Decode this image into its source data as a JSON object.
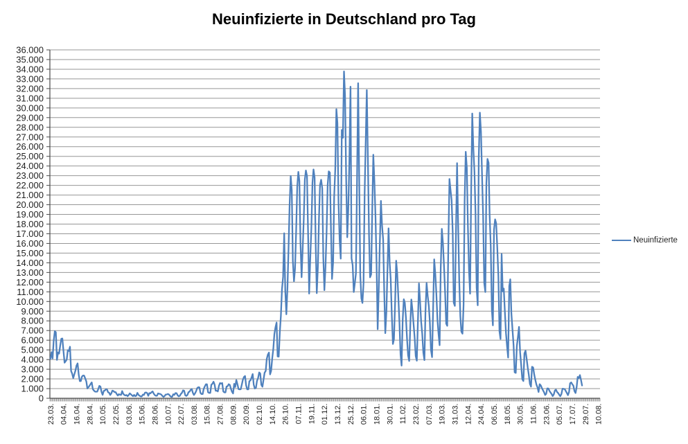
{
  "title": "Neuinfizierte in Deutschland pro Tag",
  "legend": {
    "series_label": "Neuinfizierte",
    "position": "right"
  },
  "colors": {
    "series": "#4F81BD",
    "gridline": "#969696",
    "axis": "#4a4a4a",
    "tick": "#808080",
    "label_text": "#1f1f1f",
    "title_text": "#000000",
    "background": "#FFFFFF"
  },
  "chart_data": {
    "type": "line",
    "title": "Neuinfizierte in Deutschland pro Tag",
    "xlabel": "",
    "ylabel": "",
    "grid": true,
    "legend_position": "right",
    "y_min": 0,
    "y_max": 36000,
    "y_step": 1000,
    "y_tick_labels": [
      "0",
      "1.000",
      "2.000",
      "3.000",
      "4.000",
      "5.000",
      "6.000",
      "7.000",
      "8.000",
      "9.000",
      "10.000",
      "11.000",
      "12.000",
      "13.000",
      "14.000",
      "15.000",
      "16.000",
      "17.000",
      "18.000",
      "19.000",
      "20.000",
      "21.000",
      "22.000",
      "23.000",
      "24.000",
      "25.000",
      "26.000",
      "27.000",
      "28.000",
      "29.000",
      "30.000",
      "31.000",
      "32.000",
      "33.000",
      "34.000",
      "35.000",
      "36.000"
    ],
    "x_tick_labels": [
      "23.03.",
      "04.04.",
      "16.04.",
      "28.04.",
      "10.05.",
      "22.05.",
      "03.06.",
      "15.06.",
      "28.06.",
      "10.07.",
      "22.07.",
      "03.08.",
      "15.08.",
      "27.08.",
      "08.09.",
      "20.09.",
      "02.10.",
      "14.10.",
      "26.10.",
      "07.11.",
      "19.11.",
      "01.12.",
      "13.12.",
      "25.12.",
      "06.01.",
      "18.01.",
      "30.01.",
      "11.02.",
      "23.02.",
      "07.03.",
      "19.03.",
      "31.03.",
      "12.04.",
      "24.04.",
      "06.05.",
      "18.05.",
      "30.05.",
      "11.06.",
      "23.06.",
      "05.07.",
      "17.07.",
      "29.07.",
      "10.08."
    ],
    "x_tick_every": 12,
    "category_count": 506,
    "frequency": "daily",
    "series": [
      {
        "name": "Neuinfizierte",
        "first_category_label": "23.03.",
        "values": [
          4062,
          4764,
          4118,
          5940,
          6933,
          6824,
          3965,
          4751,
          4615,
          5453,
          6156,
          6174,
          4885,
          3677,
          3834,
          4003,
          4974,
          4885,
          5323,
          2821,
          2537,
          2082,
          2486,
          2866,
          3380,
          3609,
          2458,
          1775,
          1785,
          2237,
          2352,
          2337,
          2055,
          1737,
          1018,
          1144,
          1304,
          1478,
          1639,
          945,
          793,
          697,
          679,
          685,
          947,
          1284,
          1209,
          667,
          357,
          757,
          798,
          933,
          913,
          620,
          583,
          342,
          513,
          797,
          745,
          639,
          638,
          431,
          289,
          432,
          362,
          353,
          741,
          460,
          345,
          286,
          333,
          213,
          342,
          507,
          407,
          301,
          214,
          350,
          214,
          267,
          555,
          348,
          258,
          192,
          192,
          378,
          345,
          580,
          601,
          537,
          256,
          537,
          503,
          630,
          712,
          477,
          334,
          256,
          262,
          498,
          466,
          446,
          382,
          239,
          151,
          219,
          390,
          397,
          442,
          395,
          250,
          159,
          159,
          412,
          351,
          534,
          529,
          305,
          202,
          249,
          454,
          569,
          815,
          781,
          305,
          240,
          340,
          633,
          684,
          870,
          955,
          575,
          340,
          509,
          741,
          1045,
          1147,
          1122,
          555,
          436,
          436,
          966,
          1226,
          1445,
          1449,
          625,
          561,
          561,
          1390,
          1510,
          1707,
          1427,
          782,
          785,
          711,
          1278,
          1576,
          1507,
          1571,
          711,
          610,
          610,
          1218,
          1256,
          1453,
          1378,
          988,
          679,
          499,
          1499,
          1176,
          1892,
          1449,
          948,
          920,
          927,
          1407,
          1901,
          2194,
          2297,
          1345,
          922,
          922,
          1769,
          1850,
          2143,
          2507,
          1411,
          1011,
          1084,
          1798,
          2089,
          2673,
          2563,
          1382,
          1192,
          1906,
          2639,
          2828,
          4058,
          4516,
          4721,
          2467,
          2821,
          4122,
          5132,
          6638,
          7334,
          7830,
          4325,
          4309,
          6868,
          8523,
          11287,
          12548,
          17051,
          11176,
          8685,
          11409,
          15352,
          19990,
          22966,
          21506,
          14177,
          12097,
          13363,
          17214,
          21866,
          23399,
          22461,
          16017,
          12511,
          15332,
          18487,
          22609,
          23542,
          22964,
          16947,
          10824,
          14419,
          17561,
          22268,
          23648,
          22806,
          15741,
          10864,
          13554,
          18633,
          22046,
          22577,
          21695,
          14611,
          11169,
          13604,
          17270,
          22046,
          23449,
          23318,
          17767,
          12332,
          14054,
          20815,
          23679,
          29875,
          28438,
          20200,
          16362,
          14432,
          27728,
          26923,
          33777,
          31300,
          22771,
          16643,
          19528,
          24740,
          32195,
          14455,
          13755,
          10976,
          11924,
          12892,
          22459,
          32552,
          22924,
          12690,
          10315,
          9847,
          11897,
          21237,
          26391,
          31849,
          24694,
          16946,
          12497,
          12802,
          19600,
          25164,
          22368,
          18678,
          13882,
          7141,
          11369,
          15974,
          20398,
          17862,
          16417,
          11192,
          6729,
          8912,
          13202,
          17553,
          14022,
          12321,
          8616,
          5608,
          6114,
          9705,
          14211,
          12908,
          10485,
          7890,
          4535,
          3379,
          8072,
          10237,
          9860,
          8354,
          6114,
          4426,
          3856,
          7556,
          10207,
          9113,
          7676,
          6243,
          4369,
          3883,
          8007,
          11869,
          9997,
          7879,
          6668,
          4732,
          3943,
          9019,
          11912,
          10580,
          9557,
          7890,
          5011,
          4252,
          9146,
          14356,
          12834,
          10790,
          8103,
          6604,
          5480,
          13435,
          17504,
          16033,
          13733,
          10982,
          7709,
          7485,
          15813,
          22657,
          21573,
          20472,
          17176,
          9872,
          9549,
          17051,
          24300,
          18129,
          12196,
          8497,
          6885,
          6680,
          9677,
          20407,
          25464,
          23804,
          17855,
          13245,
          10810,
          21693,
          29426,
          25831,
          23392,
          19185,
          11437,
          9609,
          24884,
          29518,
          27543,
          23160,
          18773,
          11907,
          10976,
          22231,
          24736,
          24329,
          18935,
          15685,
          9160,
          7534,
          17419,
          18485,
          18085,
          15635,
          12656,
          6922,
          6125,
          14909,
          11040,
          11336,
          8947,
          6714,
          5412,
          4209,
          11598,
          12298,
          8769,
          7082,
          5426,
          2682,
          2626,
          5426,
          6313,
          7380,
          4752,
          3464,
          1978,
          1785,
          4640,
          4917,
          4076,
          3165,
          2440,
          1489,
          1204,
          3254,
          3187,
          2440,
          1911,
          1425,
          1117,
          652,
          1455,
          1330,
          1076,
          842,
          627,
          346,
          455,
          1016,
          1008,
          774,
          592,
          440,
          219,
          404,
          808,
          892,
          649,
          538,
          355,
          212,
          440,
          985,
          970,
          949,
          745,
          559,
          324,
          646,
          1548,
          1642,
          1456,
          1292,
          745,
          546,
          1183,
          2203,
          2089,
          2400,
          1919,
          1324
        ]
      }
    ]
  }
}
